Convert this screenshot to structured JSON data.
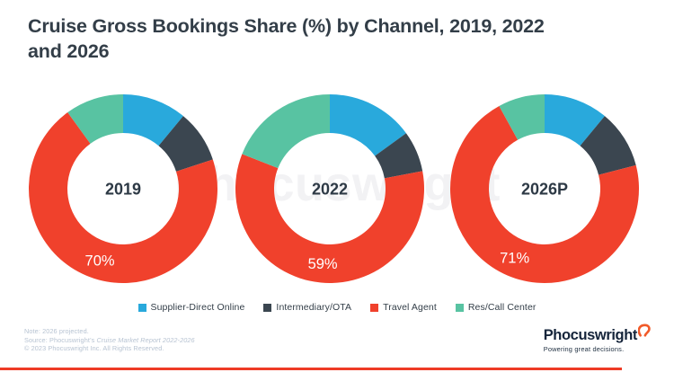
{
  "title": {
    "line1": "Cruise Gross Bookings Share (%) by Channel, 2019, 2022",
    "line2": "and 2026",
    "full": "Cruise Gross Bookings Share (%) by Channel, 2019, 2022 and 2026"
  },
  "watermark": "Phocuswright",
  "colors": {
    "supplier_direct_online": "#29A9DC",
    "intermediary_ota": "#3B4650",
    "travel_agent": "#F0412C",
    "res_call_center": "#58C3A2",
    "title_text": "#333E48",
    "footer_text": "#B7C3D2",
    "logo_navy": "#16253B",
    "logo_swoosh_orange": "#F15A29",
    "rule_red": "#EE3B26",
    "watermark_gray": "#F2F2F4"
  },
  "legend": {
    "items": [
      {
        "label": "Supplier-Direct Online",
        "color": "#29A9DC"
      },
      {
        "label": "Intermediary/OTA",
        "color": "#3B4650"
      },
      {
        "label": "Travel Agent",
        "color": "#F0412C"
      },
      {
        "label": "Res/Call Center",
        "color": "#58C3A2"
      }
    ]
  },
  "chart_data": [
    {
      "type": "pie",
      "subtype": "donut",
      "center_label": "2019",
      "categories": [
        "Supplier-Direct Online",
        "Intermediary/OTA",
        "Travel Agent",
        "Res/Call Center"
      ],
      "values": [
        11,
        9,
        70,
        10
      ],
      "shown_label": {
        "category": "Travel Agent",
        "text": "70%"
      },
      "start_angle_deg": 0,
      "direction": "clockwise"
    },
    {
      "type": "pie",
      "subtype": "donut",
      "center_label": "2022",
      "categories": [
        "Supplier-Direct Online",
        "Intermediary/OTA",
        "Travel Agent",
        "Res/Call Center"
      ],
      "values": [
        15,
        7,
        59,
        19
      ],
      "shown_label": {
        "category": "Travel Agent",
        "text": "59%"
      },
      "start_angle_deg": 0,
      "direction": "clockwise"
    },
    {
      "type": "pie",
      "subtype": "donut",
      "center_label": "2026P",
      "categories": [
        "Supplier-Direct Online",
        "Intermediary/OTA",
        "Travel Agent",
        "Res/Call Center"
      ],
      "values": [
        11,
        10,
        71,
        8
      ],
      "shown_label": {
        "category": "Travel Agent",
        "text": "71%"
      },
      "start_angle_deg": 0,
      "direction": "clockwise"
    }
  ],
  "footer": {
    "note": "Note: 2026 projected.",
    "source_prefix": "Source: Phocuswright’s ",
    "source_title": "Cruise Market Report 2022-2026",
    "copyright": "© 2023 Phocuswright Inc. All Rights Reserved.",
    "logo_text": "Phocuswright",
    "logo_tagline": "Powering great decisions."
  }
}
